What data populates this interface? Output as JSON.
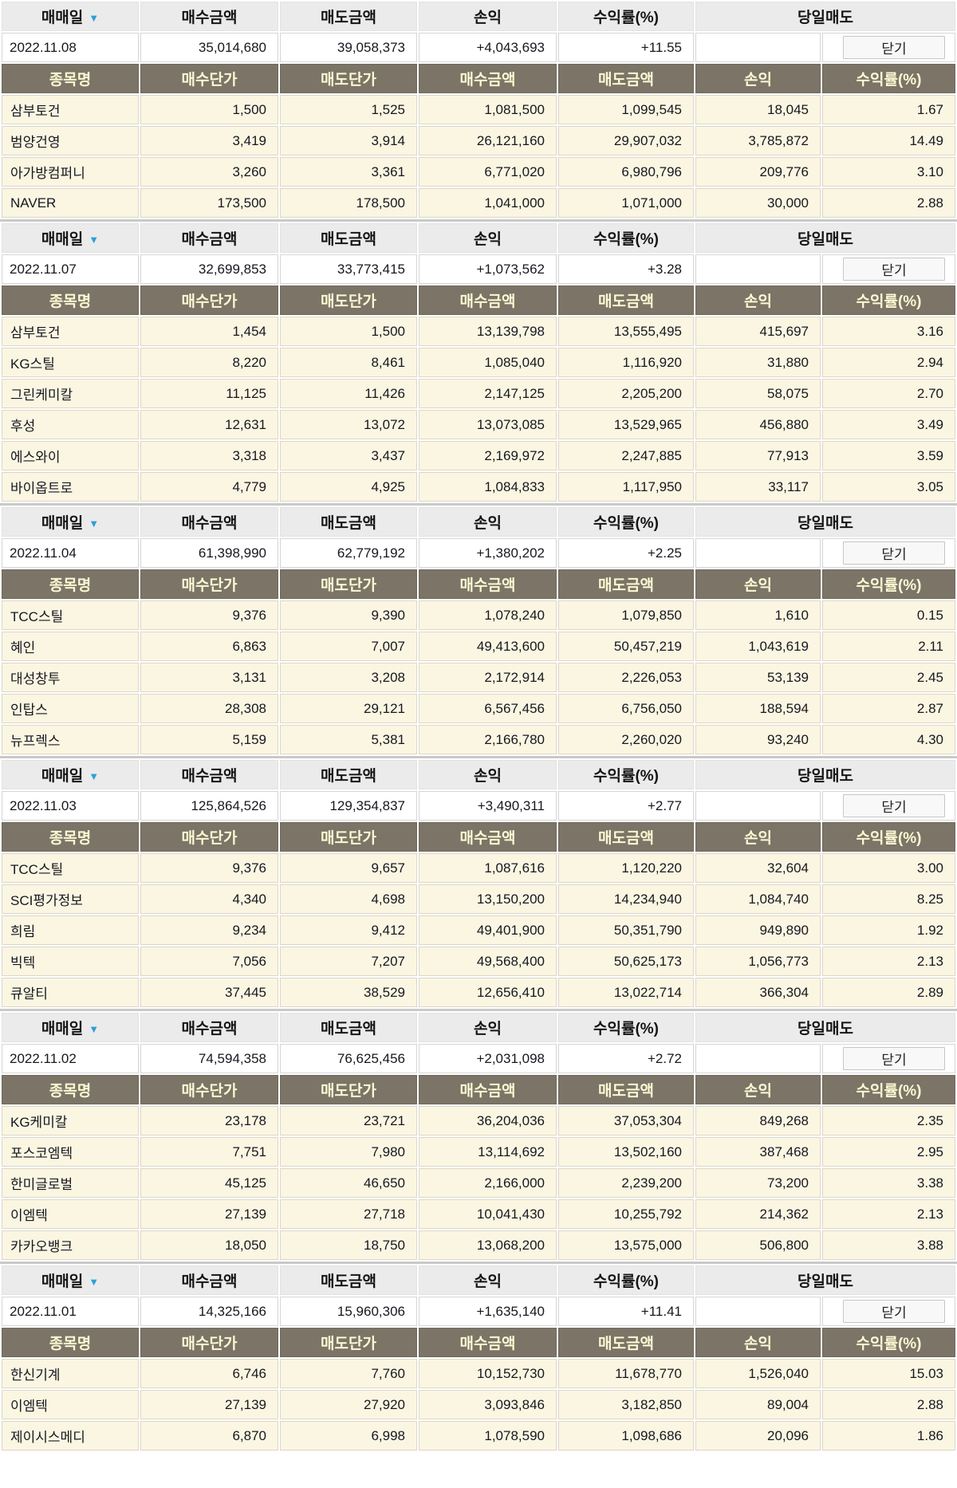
{
  "labels": {
    "close": "닫기",
    "sort_desc_icon": "▼"
  },
  "columns": {
    "trade_date": "매매일",
    "buy_amount": "매수금액",
    "sell_amount": "매도금액",
    "profit": "손익",
    "rate": "수익률(%)",
    "day_sell": "당일매도",
    "stock_name": "종목명",
    "buy_price": "매수단가",
    "sell_price": "매도단가"
  },
  "colors": {
    "accent_red": "#ef2b4f",
    "header_bg": "#ebebeb",
    "subheader_bg": "#7b7467",
    "subheader_text": "#fcf8d2",
    "row_bg": "#faf6e2",
    "sort_arrow_blue": "#2d9fd8"
  },
  "sections": [
    {
      "date": "2022.11.08",
      "buy_total": "35,014,680",
      "sell_total": "39,058,373",
      "profit_total": "+4,043,693",
      "rate_total": "+11.55",
      "stocks": [
        {
          "name": "삼부토건",
          "buy_price": "1,500",
          "sell_price": "1,525",
          "buy_amount": "1,081,500",
          "sell_amount": "1,099,545",
          "profit": "18,045",
          "rate": "1.67"
        },
        {
          "name": "범양건영",
          "buy_price": "3,419",
          "sell_price": "3,914",
          "buy_amount": "26,121,160",
          "sell_amount": "29,907,032",
          "profit": "3,785,872",
          "rate": "14.49"
        },
        {
          "name": "아가방컴퍼니",
          "buy_price": "3,260",
          "sell_price": "3,361",
          "buy_amount": "6,771,020",
          "sell_amount": "6,980,796",
          "profit": "209,776",
          "rate": "3.10"
        },
        {
          "name": "NAVER",
          "buy_price": "173,500",
          "sell_price": "178,500",
          "buy_amount": "1,041,000",
          "sell_amount": "1,071,000",
          "profit": "30,000",
          "rate": "2.88"
        }
      ]
    },
    {
      "date": "2022.11.07",
      "buy_total": "32,699,853",
      "sell_total": "33,773,415",
      "profit_total": "+1,073,562",
      "rate_total": "+3.28",
      "stocks": [
        {
          "name": "삼부토건",
          "buy_price": "1,454",
          "sell_price": "1,500",
          "buy_amount": "13,139,798",
          "sell_amount": "13,555,495",
          "profit": "415,697",
          "rate": "3.16"
        },
        {
          "name": "KG스틸",
          "buy_price": "8,220",
          "sell_price": "8,461",
          "buy_amount": "1,085,040",
          "sell_amount": "1,116,920",
          "profit": "31,880",
          "rate": "2.94"
        },
        {
          "name": "그린케미칼",
          "buy_price": "11,125",
          "sell_price": "11,426",
          "buy_amount": "2,147,125",
          "sell_amount": "2,205,200",
          "profit": "58,075",
          "rate": "2.70"
        },
        {
          "name": "후성",
          "buy_price": "12,631",
          "sell_price": "13,072",
          "buy_amount": "13,073,085",
          "sell_amount": "13,529,965",
          "profit": "456,880",
          "rate": "3.49"
        },
        {
          "name": "에스와이",
          "buy_price": "3,318",
          "sell_price": "3,437",
          "buy_amount": "2,169,972",
          "sell_amount": "2,247,885",
          "profit": "77,913",
          "rate": "3.59"
        },
        {
          "name": "바이옵트로",
          "buy_price": "4,779",
          "sell_price": "4,925",
          "buy_amount": "1,084,833",
          "sell_amount": "1,117,950",
          "profit": "33,117",
          "rate": "3.05"
        }
      ]
    },
    {
      "date": "2022.11.04",
      "buy_total": "61,398,990",
      "sell_total": "62,779,192",
      "profit_total": "+1,380,202",
      "rate_total": "+2.25",
      "stocks": [
        {
          "name": "TCC스틸",
          "buy_price": "9,376",
          "sell_price": "9,390",
          "buy_amount": "1,078,240",
          "sell_amount": "1,079,850",
          "profit": "1,610",
          "rate": "0.15"
        },
        {
          "name": "혜인",
          "buy_price": "6,863",
          "sell_price": "7,007",
          "buy_amount": "49,413,600",
          "sell_amount": "50,457,219",
          "profit": "1,043,619",
          "rate": "2.11"
        },
        {
          "name": "대성창투",
          "buy_price": "3,131",
          "sell_price": "3,208",
          "buy_amount": "2,172,914",
          "sell_amount": "2,226,053",
          "profit": "53,139",
          "rate": "2.45"
        },
        {
          "name": "인탑스",
          "buy_price": "28,308",
          "sell_price": "29,121",
          "buy_amount": "6,567,456",
          "sell_amount": "6,756,050",
          "profit": "188,594",
          "rate": "2.87"
        },
        {
          "name": "뉴프렉스",
          "buy_price": "5,159",
          "sell_price": "5,381",
          "buy_amount": "2,166,780",
          "sell_amount": "2,260,020",
          "profit": "93,240",
          "rate": "4.30"
        }
      ]
    },
    {
      "date": "2022.11.03",
      "buy_total": "125,864,526",
      "sell_total": "129,354,837",
      "profit_total": "+3,490,311",
      "rate_total": "+2.77",
      "stocks": [
        {
          "name": "TCC스틸",
          "buy_price": "9,376",
          "sell_price": "9,657",
          "buy_amount": "1,087,616",
          "sell_amount": "1,120,220",
          "profit": "32,604",
          "rate": "3.00"
        },
        {
          "name": "SCI평가정보",
          "buy_price": "4,340",
          "sell_price": "4,698",
          "buy_amount": "13,150,200",
          "sell_amount": "14,234,940",
          "profit": "1,084,740",
          "rate": "8.25"
        },
        {
          "name": "희림",
          "buy_price": "9,234",
          "sell_price": "9,412",
          "buy_amount": "49,401,900",
          "sell_amount": "50,351,790",
          "profit": "949,890",
          "rate": "1.92"
        },
        {
          "name": "빅텍",
          "buy_price": "7,056",
          "sell_price": "7,207",
          "buy_amount": "49,568,400",
          "sell_amount": "50,625,173",
          "profit": "1,056,773",
          "rate": "2.13"
        },
        {
          "name": "큐알티",
          "buy_price": "37,445",
          "sell_price": "38,529",
          "buy_amount": "12,656,410",
          "sell_amount": "13,022,714",
          "profit": "366,304",
          "rate": "2.89"
        }
      ]
    },
    {
      "date": "2022.11.02",
      "buy_total": "74,594,358",
      "sell_total": "76,625,456",
      "profit_total": "+2,031,098",
      "rate_total": "+2.72",
      "stocks": [
        {
          "name": "KG케미칼",
          "buy_price": "23,178",
          "sell_price": "23,721",
          "buy_amount": "36,204,036",
          "sell_amount": "37,053,304",
          "profit": "849,268",
          "rate": "2.35"
        },
        {
          "name": "포스코엠텍",
          "buy_price": "7,751",
          "sell_price": "7,980",
          "buy_amount": "13,114,692",
          "sell_amount": "13,502,160",
          "profit": "387,468",
          "rate": "2.95"
        },
        {
          "name": "한미글로벌",
          "buy_price": "45,125",
          "sell_price": "46,650",
          "buy_amount": "2,166,000",
          "sell_amount": "2,239,200",
          "profit": "73,200",
          "rate": "3.38"
        },
        {
          "name": "이엠텍",
          "buy_price": "27,139",
          "sell_price": "27,718",
          "buy_amount": "10,041,430",
          "sell_amount": "10,255,792",
          "profit": "214,362",
          "rate": "2.13"
        },
        {
          "name": "카카오뱅크",
          "buy_price": "18,050",
          "sell_price": "18,750",
          "buy_amount": "13,068,200",
          "sell_amount": "13,575,000",
          "profit": "506,800",
          "rate": "3.88"
        }
      ]
    },
    {
      "date": "2022.11.01",
      "buy_total": "14,325,166",
      "sell_total": "15,960,306",
      "profit_total": "+1,635,140",
      "rate_total": "+11.41",
      "stocks": [
        {
          "name": "한신기계",
          "buy_price": "6,746",
          "sell_price": "7,760",
          "buy_amount": "10,152,730",
          "sell_amount": "11,678,770",
          "profit": "1,526,040",
          "rate": "15.03"
        },
        {
          "name": "이엠텍",
          "buy_price": "27,139",
          "sell_price": "27,920",
          "buy_amount": "3,093,846",
          "sell_amount": "3,182,850",
          "profit": "89,004",
          "rate": "2.88"
        },
        {
          "name": "제이시스메디",
          "buy_price": "6,870",
          "sell_price": "6,998",
          "buy_amount": "1,078,590",
          "sell_amount": "1,098,686",
          "profit": "20,096",
          "rate": "1.86"
        }
      ]
    }
  ]
}
